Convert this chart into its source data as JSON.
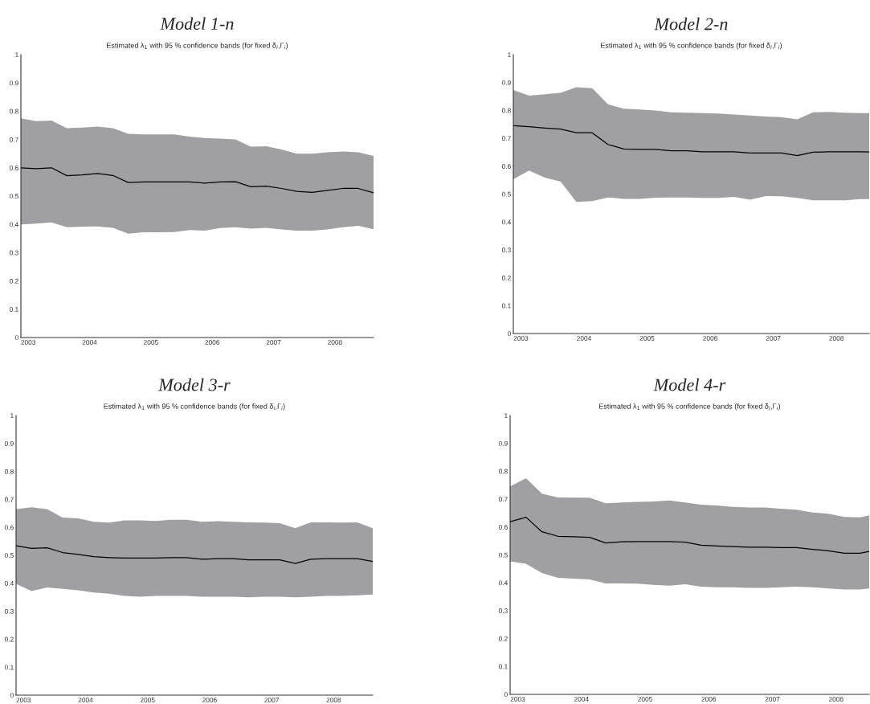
{
  "chart_data": [
    {
      "type": "line",
      "title": "Model 1-n",
      "subtitle": "Estimated λ$_{1}$ with 95 % confidence bands (for fixed δ$_{i}$,Γ$_{i}$)",
      "x": [
        2002.88,
        2003.13,
        2003.38,
        2003.63,
        2003.88,
        2004.13,
        2004.38,
        2004.63,
        2004.88,
        2005.13,
        2005.38,
        2005.63,
        2005.88,
        2006.13,
        2006.38,
        2006.63,
        2006.88,
        2007.13,
        2007.38,
        2007.63,
        2007.88,
        2008.13,
        2008.38,
        2008.63
      ],
      "xlim": [
        2002.88,
        2008.63
      ],
      "xticks": [
        2003,
        2004,
        2005,
        2006,
        2007,
        2008
      ],
      "ylim": [
        0,
        1
      ],
      "yticks": [
        0,
        0.1,
        0.2,
        0.3,
        0.4,
        0.5,
        0.6,
        0.7,
        0.8,
        0.9,
        1
      ],
      "grid": false,
      "series": [
        {
          "color": "#000000",
          "values": [
            0.6,
            0.597,
            0.6,
            0.572,
            0.575,
            0.58,
            0.573,
            0.548,
            0.55,
            0.55,
            0.55,
            0.55,
            0.546,
            0.55,
            0.551,
            0.533,
            0.535,
            0.527,
            0.517,
            0.513,
            0.52,
            0.527,
            0.527,
            0.512
          ],
          "upper": [
            0.775,
            0.765,
            0.767,
            0.74,
            0.742,
            0.746,
            0.74,
            0.72,
            0.718,
            0.718,
            0.718,
            0.71,
            0.705,
            0.703,
            0.7,
            0.675,
            0.676,
            0.665,
            0.65,
            0.65,
            0.655,
            0.658,
            0.655,
            0.642
          ],
          "lower": [
            0.4,
            0.403,
            0.407,
            0.39,
            0.392,
            0.393,
            0.388,
            0.367,
            0.372,
            0.372,
            0.373,
            0.38,
            0.378,
            0.387,
            0.39,
            0.385,
            0.388,
            0.382,
            0.378,
            0.378,
            0.382,
            0.39,
            0.395,
            0.383
          ]
        }
      ]
    },
    {
      "type": "line",
      "title": "Model 2-n",
      "subtitle": "Estimated λ$_{1}$ with 95 % confidence bands (for fixed δ$_{i}$,Γ$_{i}$)",
      "x": [
        2002.88,
        2003.13,
        2003.38,
        2003.63,
        2003.88,
        2004.13,
        2004.38,
        2004.63,
        2004.88,
        2005.13,
        2005.38,
        2005.63,
        2005.88,
        2006.13,
        2006.38,
        2006.63,
        2006.88,
        2007.13,
        2007.38,
        2007.63,
        2007.88,
        2008.13,
        2008.38,
        2008.52
      ],
      "xlim": [
        2002.88,
        2008.52
      ],
      "xticks": [
        2003,
        2004,
        2005,
        2006,
        2007,
        2008
      ],
      "ylim": [
        0,
        1
      ],
      "yticks": [
        0,
        0.1,
        0.2,
        0.3,
        0.4,
        0.5,
        0.6,
        0.7,
        0.8,
        0.9,
        1
      ],
      "grid": false,
      "series": [
        {
          "color": "#000000",
          "values": [
            0.745,
            0.742,
            0.737,
            0.733,
            0.72,
            0.72,
            0.678,
            0.662,
            0.66,
            0.66,
            0.655,
            0.655,
            0.652,
            0.652,
            0.652,
            0.647,
            0.647,
            0.647,
            0.638,
            0.65,
            0.652,
            0.652,
            0.652,
            0.651
          ],
          "upper": [
            0.873,
            0.853,
            0.858,
            0.863,
            0.883,
            0.88,
            0.822,
            0.806,
            0.803,
            0.8,
            0.793,
            0.792,
            0.79,
            0.789,
            0.785,
            0.782,
            0.778,
            0.776,
            0.768,
            0.793,
            0.795,
            0.792,
            0.79,
            0.79
          ],
          "lower": [
            0.553,
            0.584,
            0.559,
            0.545,
            0.472,
            0.475,
            0.488,
            0.483,
            0.483,
            0.487,
            0.488,
            0.488,
            0.486,
            0.486,
            0.49,
            0.48,
            0.493,
            0.492,
            0.486,
            0.478,
            0.478,
            0.478,
            0.482,
            0.482
          ]
        }
      ]
    },
    {
      "type": "line",
      "title": "Model 3-r",
      "subtitle": "Estimated λ$_{1}$ with 95 % confidence bands (for fixed δ$_{i}$,Γ$_{i}$)",
      "x": [
        2002.88,
        2003.13,
        2003.38,
        2003.63,
        2003.88,
        2004.13,
        2004.38,
        2004.63,
        2004.88,
        2005.13,
        2005.38,
        2005.63,
        2005.88,
        2006.13,
        2006.38,
        2006.63,
        2006.88,
        2007.13,
        2007.38,
        2007.63,
        2007.88,
        2008.13,
        2008.38,
        2008.63
      ],
      "xlim": [
        2002.88,
        2008.63
      ],
      "xticks": [
        2003,
        2004,
        2005,
        2006,
        2007,
        2008
      ],
      "ylim": [
        0,
        1
      ],
      "yticks": [
        0,
        0.1,
        0.2,
        0.3,
        0.4,
        0.5,
        0.6,
        0.7,
        0.8,
        0.9,
        1
      ],
      "grid": false,
      "series": [
        {
          "color": "#000000",
          "values": [
            0.534,
            0.525,
            0.527,
            0.51,
            0.503,
            0.495,
            0.492,
            0.49,
            0.49,
            0.49,
            0.492,
            0.492,
            0.486,
            0.488,
            0.488,
            0.484,
            0.484,
            0.484,
            0.471,
            0.486,
            0.488,
            0.488,
            0.488,
            0.478
          ],
          "upper": [
            0.665,
            0.672,
            0.665,
            0.635,
            0.632,
            0.62,
            0.617,
            0.625,
            0.625,
            0.623,
            0.627,
            0.627,
            0.62,
            0.622,
            0.62,
            0.618,
            0.617,
            0.615,
            0.597,
            0.618,
            0.618,
            0.617,
            0.618,
            0.597
          ],
          "lower": [
            0.398,
            0.372,
            0.385,
            0.38,
            0.375,
            0.367,
            0.363,
            0.355,
            0.352,
            0.355,
            0.355,
            0.355,
            0.352,
            0.352,
            0.352,
            0.35,
            0.352,
            0.352,
            0.35,
            0.352,
            0.355,
            0.355,
            0.357,
            0.36
          ]
        }
      ]
    },
    {
      "type": "line",
      "title": "Model 4-r",
      "subtitle": "Estimated λ$_{1}$ with 95 % confidence bands (for fixed δ$_{i}$,Γ$_{i}$)",
      "x": [
        2002.88,
        2003.13,
        2003.38,
        2003.63,
        2003.88,
        2004.13,
        2004.38,
        2004.63,
        2004.88,
        2005.13,
        2005.38,
        2005.63,
        2005.88,
        2006.13,
        2006.38,
        2006.63,
        2006.88,
        2007.13,
        2007.38,
        2007.63,
        2007.88,
        2008.13,
        2008.38,
        2008.52
      ],
      "xlim": [
        2002.88,
        2008.52
      ],
      "xticks": [
        2003,
        2004,
        2005,
        2006,
        2007,
        2008
      ],
      "ylim": [
        0,
        1
      ],
      "yticks": [
        0,
        0.1,
        0.2,
        0.3,
        0.4,
        0.5,
        0.6,
        0.7,
        0.8,
        0.9,
        1
      ],
      "grid": false,
      "series": [
        {
          "color": "#000000",
          "values": [
            0.619,
            0.635,
            0.583,
            0.567,
            0.565,
            0.563,
            0.543,
            0.547,
            0.548,
            0.548,
            0.548,
            0.546,
            0.535,
            0.532,
            0.53,
            0.528,
            0.528,
            0.526,
            0.526,
            0.52,
            0.515,
            0.506,
            0.506,
            0.513
          ],
          "upper": [
            0.746,
            0.775,
            0.72,
            0.706,
            0.705,
            0.705,
            0.685,
            0.688,
            0.69,
            0.692,
            0.695,
            0.688,
            0.68,
            0.677,
            0.672,
            0.67,
            0.67,
            0.666,
            0.662,
            0.652,
            0.648,
            0.636,
            0.635,
            0.642
          ],
          "lower": [
            0.477,
            0.468,
            0.435,
            0.418,
            0.415,
            0.412,
            0.398,
            0.398,
            0.397,
            0.393,
            0.39,
            0.395,
            0.386,
            0.384,
            0.384,
            0.382,
            0.382,
            0.384,
            0.386,
            0.384,
            0.38,
            0.376,
            0.376,
            0.38
          ]
        }
      ]
    }
  ]
}
